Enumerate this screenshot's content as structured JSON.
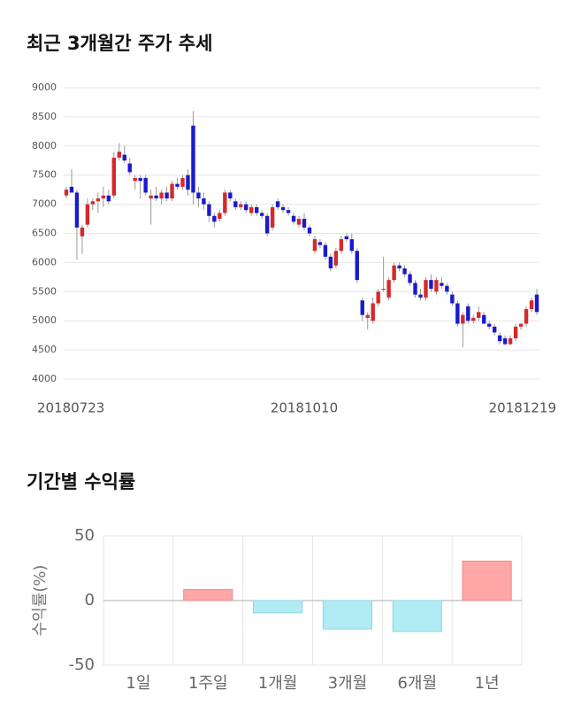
{
  "chart_data": [
    {
      "type": "candlestick",
      "title": "최근 3개월간 주가 추세",
      "categories": [
        "20180723",
        null,
        null,
        null,
        null,
        null,
        null,
        null,
        null,
        null,
        null,
        null,
        null,
        null,
        null,
        null,
        null,
        null,
        null,
        null,
        null,
        null,
        null,
        null,
        null,
        null,
        null,
        null,
        null,
        null,
        null,
        null,
        null,
        null,
        null,
        null,
        null,
        null,
        null,
        null,
        null,
        null,
        null,
        null,
        null,
        "20181010",
        null,
        null,
        null,
        null,
        null,
        null,
        null,
        null,
        null,
        null,
        null,
        null,
        null,
        null,
        null,
        null,
        null,
        null,
        null,
        null,
        null,
        null,
        null,
        null,
        null,
        null,
        null,
        null,
        null,
        null,
        null,
        null,
        null,
        null,
        null,
        null,
        null,
        null,
        null,
        null,
        null,
        null,
        null,
        "20181219"
      ],
      "open": [
        7150,
        7300,
        7200,
        6450,
        6650,
        7000,
        7050,
        7100,
        7150,
        7150,
        7800,
        7850,
        7700,
        7400,
        7450,
        7450,
        7100,
        7150,
        7100,
        7200,
        7100,
        7350,
        7300,
        7500,
        8350,
        7200,
        7100,
        7000,
        6800,
        6750,
        6850,
        7200,
        7050,
        6950,
        7000,
        6850,
        6950,
        6850,
        6800,
        6600,
        7050,
        6950,
        6900,
        6800,
        6650,
        6750,
        6600,
        6200,
        6350,
        6300,
        6100,
        5950,
        6200,
        6450,
        6400,
        6200,
        5350,
        5050,
        5000,
        5300,
        5550,
        5400,
        5700,
        5950,
        5900,
        5800,
        5650,
        5450,
        5400,
        5700,
        5500,
        5650,
        5600,
        5450,
        5300,
        4950,
        5250,
        5000,
        5050,
        5100,
        4950,
        4900,
        4750,
        4700,
        4600,
        4700,
        4900,
        4950,
        5200,
        5450
      ],
      "high": [
        7300,
        7600,
        7250,
        6650,
        7100,
        7100,
        7200,
        7300,
        7250,
        7900,
        8050,
        8000,
        7800,
        7500,
        7500,
        7500,
        7250,
        7300,
        7250,
        7300,
        7400,
        7450,
        7500,
        7600,
        8600,
        7300,
        7200,
        7050,
        6850,
        6900,
        7250,
        7250,
        7100,
        7050,
        7050,
        7000,
        7000,
        6900,
        6850,
        7000,
        7100,
        7000,
        6950,
        6850,
        6800,
        6850,
        6650,
        6450,
        6400,
        6350,
        6150,
        6250,
        6450,
        6500,
        6500,
        6250,
        5400,
        5150,
        5400,
        5550,
        6100,
        5750,
        6000,
        6000,
        5950,
        5850,
        5700,
        5550,
        5750,
        5800,
        5750,
        5750,
        5650,
        5500,
        5350,
        5150,
        5300,
        5100,
        5250,
        5150,
        5000,
        4950,
        4800,
        4750,
        4750,
        4950,
        4950,
        5250,
        5400,
        5550
      ],
      "low": [
        7100,
        7200,
        6050,
        6150,
        6600,
        6900,
        6850,
        6950,
        7000,
        7100,
        7750,
        7700,
        7500,
        7250,
        7100,
        7150,
        6650,
        7050,
        7000,
        7050,
        7050,
        7250,
        7250,
        7150,
        7000,
        6950,
        6900,
        6700,
        6600,
        6700,
        6800,
        7050,
        6900,
        6900,
        6850,
        6800,
        6800,
        6750,
        6450,
        6550,
        6900,
        6850,
        6800,
        6650,
        6600,
        6550,
        6450,
        6150,
        6250,
        6050,
        5850,
        5900,
        6150,
        6350,
        6150,
        5650,
        5000,
        4850,
        4950,
        5250,
        5500,
        5350,
        5650,
        5850,
        5750,
        5600,
        5400,
        5350,
        5350,
        5500,
        5450,
        5550,
        5450,
        5250,
        4900,
        4550,
        4950,
        4950,
        5000,
        4950,
        4850,
        4750,
        4600,
        4580,
        4580,
        4650,
        4850,
        4900,
        5150,
        5100
      ],
      "close": [
        7250,
        7200,
        6600,
        6600,
        7000,
        7050,
        7100,
        7150,
        7050,
        7800,
        7900,
        7750,
        7550,
        7450,
        7400,
        7200,
        7150,
        7100,
        7200,
        7100,
        7350,
        7300,
        7450,
        7250,
        7200,
        7100,
        7000,
        6800,
        6700,
        6850,
        7200,
        7100,
        6950,
        7000,
        6900,
        6950,
        6850,
        6800,
        6500,
        6950,
        6950,
        6900,
        6850,
        6700,
        6750,
        6600,
        6500,
        6400,
        6300,
        6100,
        5900,
        6200,
        6400,
        6400,
        6200,
        5700,
        5100,
        5100,
        5300,
        5500,
        5550,
        5700,
        5950,
        5900,
        5800,
        5650,
        5450,
        5400,
        5700,
        5550,
        5700,
        5600,
        5500,
        5300,
        4950,
        5100,
        5000,
        5050,
        5150,
        4950,
        4900,
        4800,
        4650,
        4600,
        4700,
        4900,
        4950,
        5200,
        5350,
        5150
      ],
      "up_color": "#d42a2a",
      "down_color": "#1a1acc",
      "ylim": [
        4000,
        9000
      ],
      "yticks": [
        4000,
        4500,
        5000,
        5500,
        6000,
        6500,
        7000,
        7500,
        8000,
        8500,
        9000
      ],
      "grid": true
    },
    {
      "type": "bar",
      "title": "기간별 수익률",
      "ylabel": "수익률(%)",
      "categories": [
        "1일",
        "1주일",
        "1개월",
        "3개월",
        "6개월",
        "1년"
      ],
      "values": [
        0,
        8.5,
        -9.5,
        -22,
        -24,
        30.5
      ],
      "pos_color": "#ffa6a6",
      "neg_color": "#b1ebf3",
      "ylim": [
        -50,
        50
      ],
      "yticks": [
        -50,
        0,
        50
      ],
      "grid": true
    }
  ]
}
